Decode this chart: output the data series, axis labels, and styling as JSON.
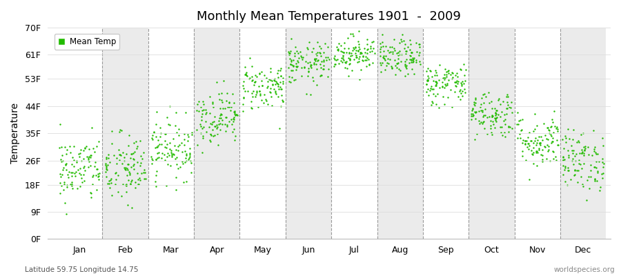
{
  "title": "Monthly Mean Temperatures 1901  -  2009",
  "ylabel": "Temperature",
  "subtitle": "Latitude 59.75 Longitude 14.75",
  "watermark": "worldspecies.org",
  "legend_label": "Mean Temp",
  "dot_color": "#22bb00",
  "dot_size": 3,
  "y_ticks": [
    0,
    9,
    18,
    26,
    35,
    44,
    53,
    61,
    70
  ],
  "y_tick_labels": [
    "0F",
    "9F",
    "18F",
    "26F",
    "35F",
    "44F",
    "53F",
    "61F",
    "70F"
  ],
  "ylim": [
    0,
    70
  ],
  "months": [
    "Jan",
    "Feb",
    "Mar",
    "Apr",
    "May",
    "Jun",
    "Jul",
    "Aug",
    "Sep",
    "Oct",
    "Nov",
    "Dec"
  ],
  "n_years": 109,
  "start_year": 1901,
  "end_year": 2009,
  "background_color": "#ffffff",
  "band_color_odd": "#ebebeb",
  "band_color_even": "#ffffff",
  "monthly_mean_temps_F": [
    23.0,
    23.0,
    30.0,
    40.5,
    50.5,
    58.0,
    61.5,
    60.0,
    51.5,
    41.5,
    32.5,
    26.0
  ],
  "monthly_std_F": [
    5.5,
    6.0,
    5.0,
    4.5,
    4.0,
    3.5,
    3.0,
    3.0,
    3.5,
    4.0,
    4.5,
    5.0
  ]
}
